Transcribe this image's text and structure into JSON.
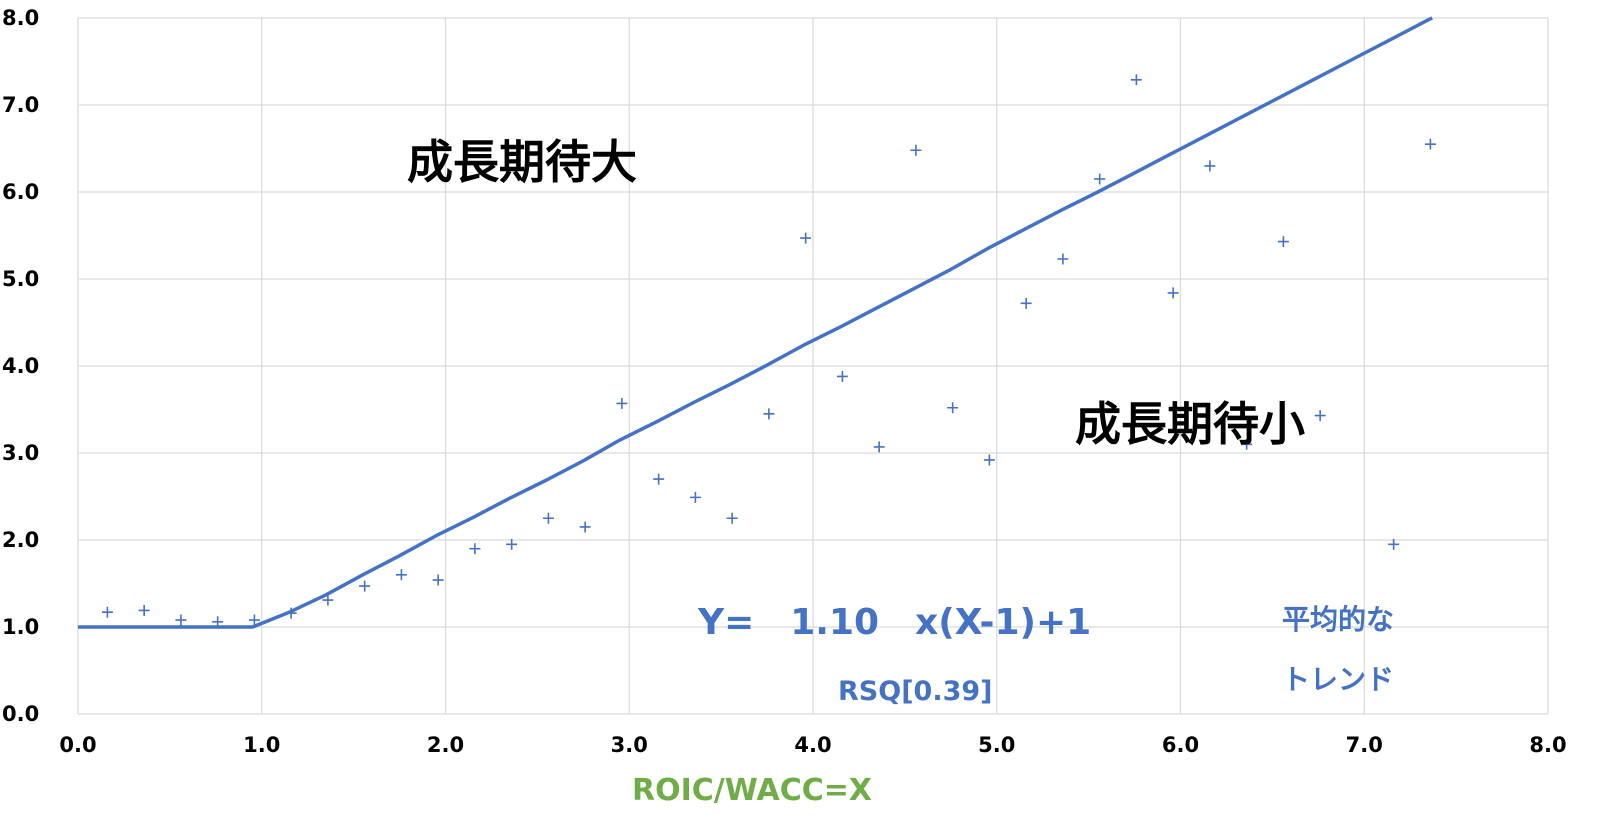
{
  "chart_data": {
    "type": "scatter",
    "xlabel": "ROIC/WACC=X",
    "ylabel": "",
    "xlim": [
      0,
      8
    ],
    "ylim": [
      0,
      8
    ],
    "x_ticks": [
      "0.0",
      "1.0",
      "2.0",
      "3.0",
      "4.0",
      "5.0",
      "6.0",
      "7.0",
      "8.0"
    ],
    "y_ticks": [
      "0.0",
      "1.0",
      "2.0",
      "3.0",
      "4.0",
      "5.0",
      "6.0",
      "7.0",
      "8.0"
    ],
    "grid": true,
    "colors": {
      "series": "#4472c4",
      "xlabel": "#70ad47",
      "grid": "#d9d9d9"
    },
    "points": [
      [
        0.16,
        1.17
      ],
      [
        0.36,
        1.19
      ],
      [
        0.56,
        1.08
      ],
      [
        0.76,
        1.06
      ],
      [
        0.96,
        1.08
      ],
      [
        1.16,
        1.16
      ],
      [
        1.36,
        1.31
      ],
      [
        1.56,
        1.47
      ],
      [
        1.76,
        1.6
      ],
      [
        1.96,
        1.54
      ],
      [
        2.16,
        1.9
      ],
      [
        2.36,
        1.95
      ],
      [
        2.56,
        2.25
      ],
      [
        2.76,
        2.15
      ],
      [
        2.96,
        3.57
      ],
      [
        3.16,
        2.7
      ],
      [
        3.36,
        2.49
      ],
      [
        3.56,
        2.25
      ],
      [
        3.76,
        3.45
      ],
      [
        3.96,
        5.47
      ],
      [
        4.16,
        3.88
      ],
      [
        4.36,
        3.07
      ],
      [
        4.56,
        6.48
      ],
      [
        4.76,
        3.52
      ],
      [
        4.96,
        2.92
      ],
      [
        5.16,
        4.72
      ],
      [
        5.36,
        5.23
      ],
      [
        5.56,
        6.15
      ],
      [
        5.76,
        7.29
      ],
      [
        5.96,
        4.84
      ],
      [
        6.16,
        6.3
      ],
      [
        6.36,
        3.1
      ],
      [
        6.56,
        5.43
      ],
      [
        6.76,
        3.43
      ],
      [
        7.16,
        1.95
      ],
      [
        7.36,
        6.55
      ]
    ],
    "trend_line": {
      "points": [
        [
          0.0,
          1.0
        ],
        [
          0.95,
          1.0
        ],
        [
          1.15,
          1.17
        ],
        [
          1.35,
          1.37
        ],
        [
          1.55,
          1.6
        ],
        [
          1.75,
          1.82
        ],
        [
          1.95,
          2.05
        ],
        [
          2.15,
          2.26
        ],
        [
          2.35,
          2.48
        ],
        [
          2.55,
          2.69
        ],
        [
          2.75,
          2.91
        ],
        [
          2.95,
          3.15
        ],
        [
          3.15,
          3.36
        ],
        [
          3.35,
          3.58
        ],
        [
          3.55,
          3.79
        ],
        [
          3.75,
          4.01
        ],
        [
          3.95,
          4.24
        ],
        [
          4.15,
          4.45
        ],
        [
          4.35,
          4.67
        ],
        [
          4.55,
          4.89
        ],
        [
          4.75,
          5.11
        ],
        [
          4.95,
          5.35
        ],
        [
          5.15,
          5.57
        ],
        [
          5.35,
          5.79
        ],
        [
          5.55,
          6.0
        ],
        [
          5.75,
          6.22
        ],
        [
          5.95,
          6.44
        ],
        [
          6.15,
          6.66
        ],
        [
          6.35,
          6.88
        ],
        [
          6.55,
          7.1
        ],
        [
          6.75,
          7.32
        ],
        [
          6.95,
          7.54
        ],
        [
          7.15,
          7.76
        ],
        [
          7.35,
          7.98
        ],
        [
          7.37,
          8.0
        ]
      ]
    },
    "annotations": {
      "upper_region": "成長期待大",
      "lower_region": "成長期待小",
      "equation": "Y=　1.10　x(X-1)+1",
      "rsq": "RSQ[0.39]",
      "trend_line1": "平均的な",
      "trend_line2": "トレンド"
    }
  }
}
